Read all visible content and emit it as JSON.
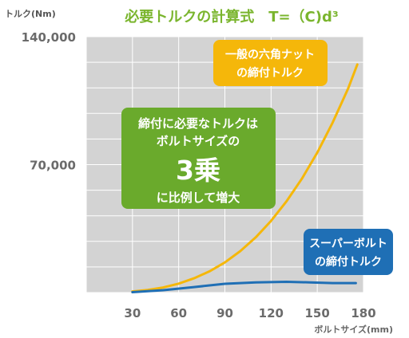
{
  "chart_data": {
    "type": "line",
    "title": "必要トルクの計算式　T=（C)d³",
    "xlabel": "ボルトサイズ(mm)",
    "ylabel": "トルク(Nm)",
    "x_ticks": [
      "30",
      "60",
      "90",
      "120",
      "150",
      "180"
    ],
    "y_ticks": [
      "70,000",
      "140,000"
    ],
    "xlim": [
      0,
      180
    ],
    "ylim": [
      0,
      140000
    ],
    "grid": true,
    "series": [
      {
        "name": "一般の六角ナットの締付トルク",
        "color": "#f5b70a",
        "x": [
          30,
          40,
          50,
          60,
          70,
          80,
          90,
          100,
          110,
          120,
          130,
          140,
          150,
          160,
          170,
          176
        ],
        "y": [
          600,
          1450,
          2800,
          4900,
          7800,
          11600,
          16500,
          22700,
          30200,
          39200,
          49900,
          62300,
          76600,
          93000,
          111500,
          124800
        ]
      },
      {
        "name": "スーパーボルトの締付トルク",
        "color": "#1f6fb5",
        "x": [
          30,
          50,
          70,
          90,
          110,
          130,
          145,
          160,
          175
        ],
        "y": [
          200,
          1300,
          3000,
          4800,
          5600,
          5900,
          5600,
          5200,
          5200
        ]
      }
    ],
    "annotations": {
      "center": {
        "line1": "締付に必要なトルクは",
        "line2": "ボルトサイズの",
        "big": "3乗",
        "line3": "に比例して増大",
        "color": "#6aaa2c"
      },
      "yellow": {
        "line1": "一般の六角ナット",
        "line2": "の締付トルク",
        "color": "#f5b70a"
      },
      "blue": {
        "line1": "スーパーボルト",
        "line2": "の締付トルク",
        "color": "#1f6fb5"
      }
    }
  }
}
